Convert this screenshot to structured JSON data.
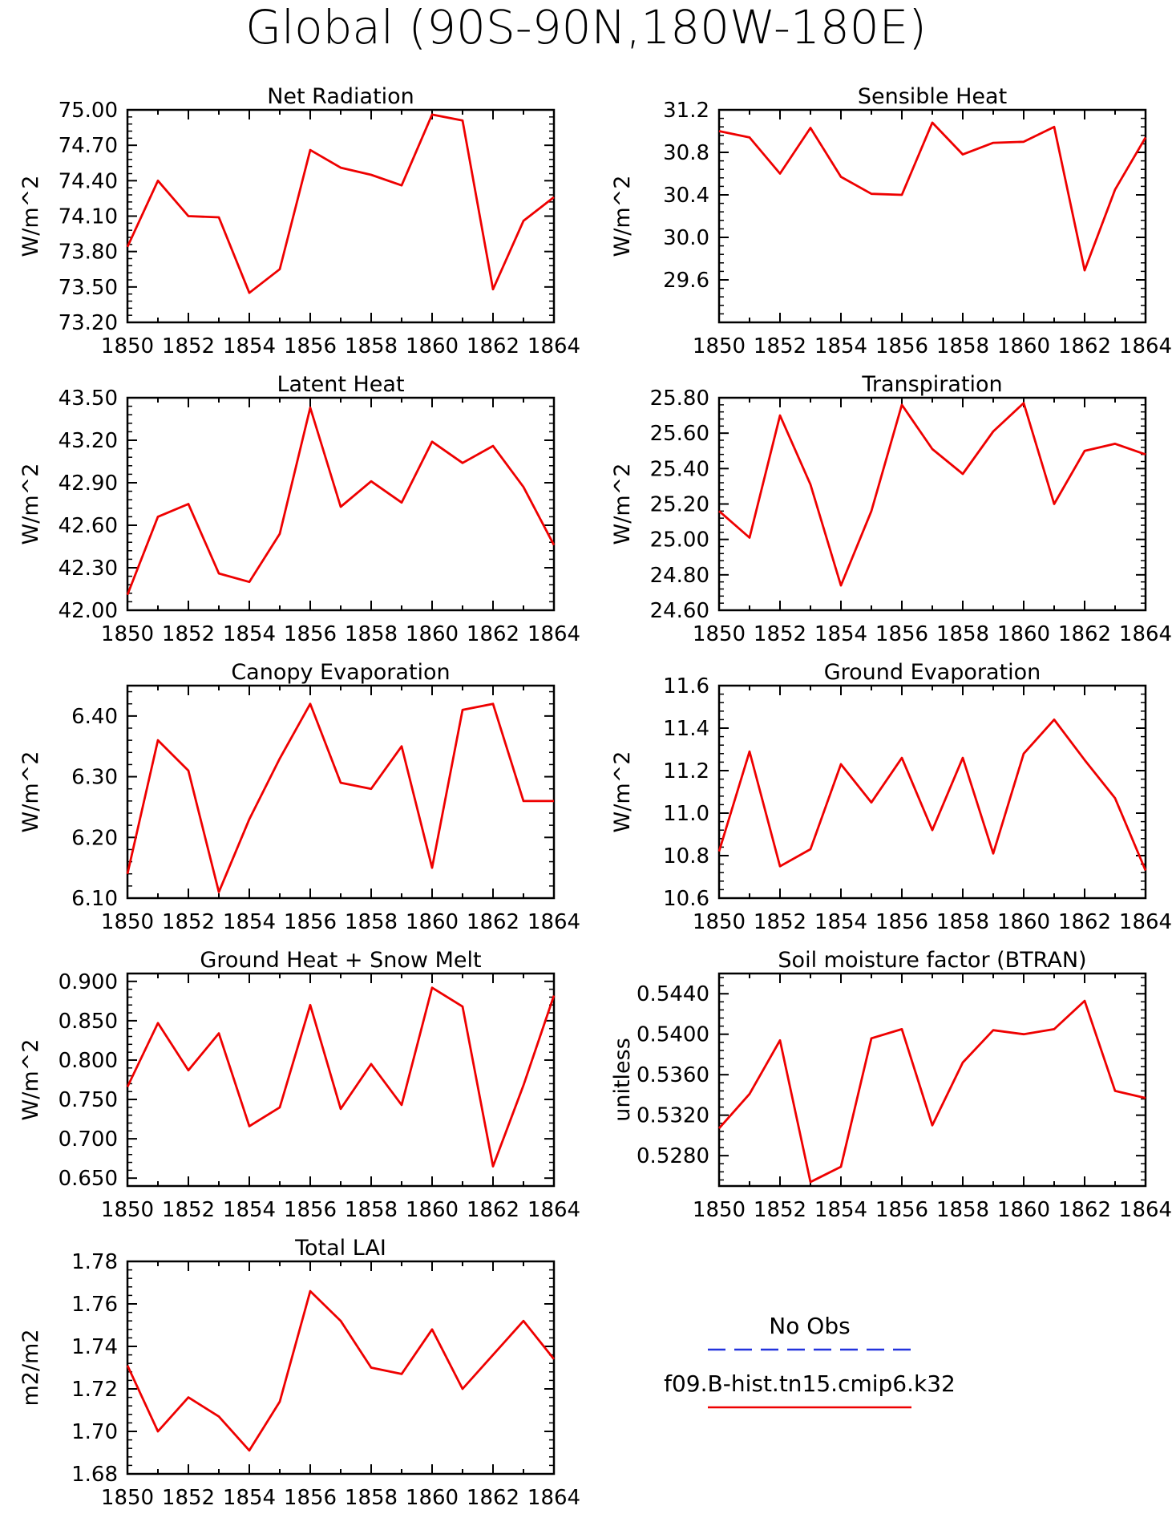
{
  "figure_title": "Global (90S-90N,180W-180E)",
  "legend": {
    "entries": [
      {
        "label": "No Obs",
        "color": "#2233dd",
        "dash": true
      },
      {
        "label": "f09.B-hist.tn15.cmip6.k32",
        "color": "#ee0000",
        "dash": false
      }
    ]
  },
  "chart_data": [
    {
      "type": "line",
      "title": "Net Radiation",
      "ylabel": "W/m^2",
      "x": [
        1850,
        1851,
        1852,
        1853,
        1854,
        1855,
        1856,
        1857,
        1858,
        1859,
        1860,
        1861,
        1862,
        1863,
        1864
      ],
      "series": [
        {
          "values": [
            73.84,
            74.4,
            74.1,
            74.09,
            73.45,
            73.65,
            74.66,
            74.51,
            74.45,
            74.36,
            74.96,
            74.91,
            73.48,
            74.06,
            74.26
          ],
          "color": "#ee0000"
        }
      ],
      "xlim": [
        1850,
        1864
      ],
      "ylim": [
        73.2,
        75.0
      ],
      "yticks": [
        73.2,
        73.5,
        73.8,
        74.1,
        74.4,
        74.7,
        75.0
      ],
      "ytick_labels": [
        "73.20",
        "73.50",
        "73.80",
        "74.10",
        "74.40",
        "74.70",
        "75.00"
      ],
      "xticks": [
        1850,
        1852,
        1854,
        1856,
        1858,
        1860,
        1862,
        1864
      ],
      "xtick_labels": [
        "1850",
        "1852",
        "1854",
        "1856",
        "1858",
        "1860",
        "1862",
        "1864"
      ]
    },
    {
      "type": "line",
      "title": "Sensible Heat",
      "ylabel": "W/m^2",
      "x": [
        1850,
        1851,
        1852,
        1853,
        1854,
        1855,
        1856,
        1857,
        1858,
        1859,
        1860,
        1861,
        1862,
        1863,
        1864
      ],
      "series": [
        {
          "values": [
            31.0,
            30.94,
            30.6,
            31.03,
            30.57,
            30.41,
            30.4,
            31.08,
            30.78,
            30.89,
            30.9,
            31.04,
            29.69,
            30.45,
            30.94
          ],
          "color": "#ee0000"
        }
      ],
      "xlim": [
        1850,
        1864
      ],
      "ylim": [
        29.2,
        31.2
      ],
      "yticks": [
        29.6,
        30.0,
        30.4,
        30.8,
        31.2
      ],
      "ytick_labels": [
        "29.6",
        "30.0",
        "30.4",
        "30.8",
        "31.2"
      ],
      "xticks": [
        1850,
        1852,
        1854,
        1856,
        1858,
        1860,
        1862,
        1864
      ],
      "xtick_labels": [
        "1850",
        "1852",
        "1854",
        "1856",
        "1858",
        "1860",
        "1862",
        "1864"
      ]
    },
    {
      "type": "line",
      "title": "Latent Heat",
      "ylabel": "W/m^2",
      "x": [
        1850,
        1851,
        1852,
        1853,
        1854,
        1855,
        1856,
        1857,
        1858,
        1859,
        1860,
        1861,
        1862,
        1863,
        1864
      ],
      "series": [
        {
          "values": [
            42.11,
            42.66,
            42.75,
            42.26,
            42.2,
            42.54,
            43.43,
            42.73,
            42.91,
            42.76,
            43.19,
            43.04,
            43.16,
            42.87,
            42.46
          ],
          "color": "#ee0000"
        }
      ],
      "xlim": [
        1850,
        1864
      ],
      "ylim": [
        42.0,
        43.5
      ],
      "yticks": [
        42.0,
        42.3,
        42.6,
        42.9,
        43.2,
        43.5
      ],
      "ytick_labels": [
        "42.00",
        "42.30",
        "42.60",
        "42.90",
        "43.20",
        "43.50"
      ],
      "xticks": [
        1850,
        1852,
        1854,
        1856,
        1858,
        1860,
        1862,
        1864
      ],
      "xtick_labels": [
        "1850",
        "1852",
        "1854",
        "1856",
        "1858",
        "1860",
        "1862",
        "1864"
      ]
    },
    {
      "type": "line",
      "title": "Transpiration",
      "ylabel": "W/m^2",
      "x": [
        1850,
        1851,
        1852,
        1853,
        1854,
        1855,
        1856,
        1857,
        1858,
        1859,
        1860,
        1861,
        1862,
        1863,
        1864
      ],
      "series": [
        {
          "values": [
            25.16,
            25.01,
            25.7,
            25.31,
            24.74,
            25.16,
            25.76,
            25.51,
            25.37,
            25.61,
            25.77,
            25.2,
            25.5,
            25.54,
            25.48
          ],
          "color": "#ee0000"
        }
      ],
      "xlim": [
        1850,
        1864
      ],
      "ylim": [
        24.6,
        25.8
      ],
      "yticks": [
        24.6,
        24.8,
        25.0,
        25.2,
        25.4,
        25.6,
        25.8
      ],
      "ytick_labels": [
        "24.60",
        "24.80",
        "25.00",
        "25.20",
        "25.40",
        "25.60",
        "25.80"
      ],
      "xticks": [
        1850,
        1852,
        1854,
        1856,
        1858,
        1860,
        1862,
        1864
      ],
      "xtick_labels": [
        "1850",
        "1852",
        "1854",
        "1856",
        "1858",
        "1860",
        "1862",
        "1864"
      ]
    },
    {
      "type": "line",
      "title": "Canopy Evaporation",
      "ylabel": "W/m^2",
      "x": [
        1850,
        1851,
        1852,
        1853,
        1854,
        1855,
        1856,
        1857,
        1858,
        1859,
        1860,
        1861,
        1862,
        1863,
        1864
      ],
      "series": [
        {
          "values": [
            6.14,
            6.36,
            6.31,
            6.11,
            6.23,
            6.33,
            6.42,
            6.29,
            6.28,
            6.35,
            6.15,
            6.41,
            6.42,
            6.26,
            6.26
          ],
          "color": "#ee0000"
        }
      ],
      "xlim": [
        1850,
        1864
      ],
      "ylim": [
        6.1,
        6.45
      ],
      "yticks": [
        6.1,
        6.2,
        6.3,
        6.4
      ],
      "ytick_labels": [
        "6.10",
        "6.20",
        "6.30",
        "6.40"
      ],
      "xticks": [
        1850,
        1852,
        1854,
        1856,
        1858,
        1860,
        1862,
        1864
      ],
      "xtick_labels": [
        "1850",
        "1852",
        "1854",
        "1856",
        "1858",
        "1860",
        "1862",
        "1864"
      ]
    },
    {
      "type": "line",
      "title": "Ground Evaporation",
      "ylabel": "W/m^2",
      "x": [
        1850,
        1851,
        1852,
        1853,
        1854,
        1855,
        1856,
        1857,
        1858,
        1859,
        1860,
        1861,
        1862,
        1863,
        1864
      ],
      "series": [
        {
          "values": [
            10.82,
            11.29,
            10.75,
            10.83,
            11.23,
            11.05,
            11.26,
            10.92,
            11.26,
            10.81,
            11.28,
            11.44,
            11.25,
            11.07,
            10.73
          ],
          "color": "#ee0000"
        }
      ],
      "xlim": [
        1850,
        1864
      ],
      "ylim": [
        10.6,
        11.6
      ],
      "yticks": [
        10.6,
        10.8,
        11.0,
        11.2,
        11.4,
        11.6
      ],
      "ytick_labels": [
        "10.6",
        "10.8",
        "11.0",
        "11.2",
        "11.4",
        "11.6"
      ],
      "xticks": [
        1850,
        1852,
        1854,
        1856,
        1858,
        1860,
        1862,
        1864
      ],
      "xtick_labels": [
        "1850",
        "1852",
        "1854",
        "1856",
        "1858",
        "1860",
        "1862",
        "1864"
      ]
    },
    {
      "type": "line",
      "title": "Ground Heat + Snow Melt",
      "ylabel": "W/m^2",
      "x": [
        1850,
        1851,
        1852,
        1853,
        1854,
        1855,
        1856,
        1857,
        1858,
        1859,
        1860,
        1861,
        1862,
        1863,
        1864
      ],
      "series": [
        {
          "values": [
            0.766,
            0.847,
            0.787,
            0.834,
            0.716,
            0.74,
            0.87,
            0.738,
            0.795,
            0.743,
            0.892,
            0.868,
            0.665,
            0.768,
            0.882
          ],
          "color": "#ee0000"
        }
      ],
      "xlim": [
        1850,
        1864
      ],
      "ylim": [
        0.64,
        0.91
      ],
      "yticks": [
        0.65,
        0.7,
        0.75,
        0.8,
        0.85,
        0.9
      ],
      "ytick_labels": [
        "0.650",
        "0.700",
        "0.750",
        "0.800",
        "0.850",
        "0.900"
      ],
      "xticks": [
        1850,
        1852,
        1854,
        1856,
        1858,
        1860,
        1862,
        1864
      ],
      "xtick_labels": [
        "1850",
        "1852",
        "1854",
        "1856",
        "1858",
        "1860",
        "1862",
        "1864"
      ]
    },
    {
      "type": "line",
      "title": "Soil moisture factor (BTRAN)",
      "ylabel": "unitless",
      "x": [
        1850,
        1851,
        1852,
        1853,
        1854,
        1855,
        1856,
        1857,
        1858,
        1859,
        1860,
        1861,
        1862,
        1863,
        1864
      ],
      "series": [
        {
          "values": [
            0.5307,
            0.5341,
            0.5394,
            0.5254,
            0.5269,
            0.5396,
            0.5405,
            0.531,
            0.5372,
            0.5404,
            0.54,
            0.5405,
            0.5433,
            0.5344,
            0.5337
          ],
          "color": "#ee0000"
        }
      ],
      "xlim": [
        1850,
        1864
      ],
      "ylim": [
        0.525,
        0.546
      ],
      "yticks": [
        0.528,
        0.532,
        0.536,
        0.54,
        0.544
      ],
      "ytick_labels": [
        "0.5280",
        "0.5320",
        "0.5360",
        "0.5400",
        "0.5440"
      ],
      "xticks": [
        1850,
        1852,
        1854,
        1856,
        1858,
        1860,
        1862,
        1864
      ],
      "xtick_labels": [
        "1850",
        "1852",
        "1854",
        "1856",
        "1858",
        "1860",
        "1862",
        "1864"
      ]
    },
    {
      "type": "line",
      "title": "Total LAI",
      "ylabel": "m2/m2",
      "x": [
        1850,
        1851,
        1852,
        1853,
        1854,
        1855,
        1856,
        1857,
        1858,
        1859,
        1860,
        1861,
        1862,
        1863,
        1864
      ],
      "series": [
        {
          "values": [
            1.731,
            1.7,
            1.716,
            1.707,
            1.691,
            1.714,
            1.766,
            1.752,
            1.73,
            1.727,
            1.748,
            1.72,
            1.736,
            1.752,
            1.734
          ],
          "color": "#ee0000"
        }
      ],
      "xlim": [
        1850,
        1864
      ],
      "ylim": [
        1.68,
        1.78
      ],
      "yticks": [
        1.68,
        1.7,
        1.72,
        1.74,
        1.76,
        1.78
      ],
      "ytick_labels": [
        "1.68",
        "1.70",
        "1.72",
        "1.74",
        "1.76",
        "1.78"
      ],
      "xticks": [
        1850,
        1852,
        1854,
        1856,
        1858,
        1860,
        1862,
        1864
      ],
      "xtick_labels": [
        "1850",
        "1852",
        "1854",
        "1856",
        "1858",
        "1860",
        "1862",
        "1864"
      ]
    }
  ]
}
